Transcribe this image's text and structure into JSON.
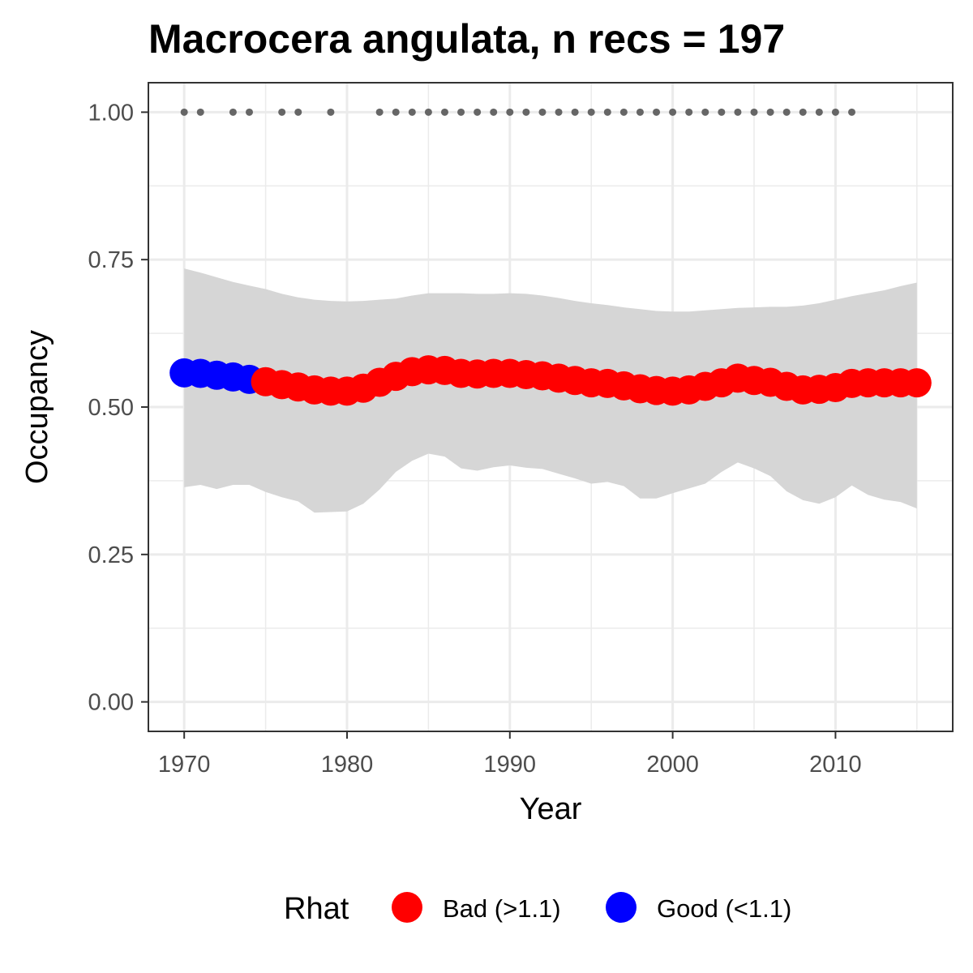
{
  "chart_data": {
    "type": "line",
    "title": "Macrocera angulata, n recs = 197",
    "xlabel": "Year",
    "ylabel": "Occupancy",
    "xlim": [
      1967.8,
      2017.2
    ],
    "ylim": [
      -0.05,
      1.05
    ],
    "x_ticks": [
      1970,
      1980,
      1990,
      2000,
      2010
    ],
    "x_minor_ticks": [
      1975,
      1985,
      1995,
      2005,
      2015
    ],
    "y_ticks": [
      0.0,
      0.25,
      0.5,
      0.75,
      1.0
    ],
    "y_tick_labels": [
      "0.00",
      "0.25",
      "0.50",
      "0.75",
      "1.00"
    ],
    "y_minor_ticks": [
      0.125,
      0.375,
      0.625,
      0.875
    ],
    "grid": true,
    "colors": {
      "bad": "#ff0000",
      "good": "#0000ff",
      "ribbon": "#d6d6d6",
      "records": "#666666"
    },
    "legend": {
      "title": "Rhat",
      "position": "bottom",
      "entries": [
        {
          "label": "Bad (>1.1)",
          "color": "#ff0000"
        },
        {
          "label": "Good (<1.1)",
          "color": "#0000ff"
        }
      ]
    },
    "series": [
      {
        "type": "line-points",
        "x": [
          1970,
          1971,
          1972,
          1973,
          1974,
          1975,
          1976,
          1977,
          1978,
          1979,
          1980,
          1981,
          1982,
          1983,
          1984,
          1985,
          1986,
          1987,
          1988,
          1989,
          1990,
          1991,
          1992,
          1993,
          1994,
          1995,
          1996,
          1997,
          1998,
          1999,
          2000,
          2001,
          2002,
          2003,
          2004,
          2005,
          2006,
          2007,
          2008,
          2009,
          2010,
          2011,
          2012,
          2013,
          2014,
          2015
        ],
        "y": [
          0.558,
          0.557,
          0.554,
          0.551,
          0.547,
          0.543,
          0.538,
          0.534,
          0.529,
          0.527,
          0.527,
          0.532,
          0.542,
          0.552,
          0.56,
          0.563,
          0.562,
          0.557,
          0.556,
          0.557,
          0.557,
          0.555,
          0.553,
          0.549,
          0.545,
          0.541,
          0.54,
          0.536,
          0.531,
          0.528,
          0.527,
          0.529,
          0.535,
          0.541,
          0.549,
          0.545,
          0.542,
          0.535,
          0.529,
          0.53,
          0.533,
          0.54,
          0.541,
          0.541,
          0.541,
          0.541
        ],
        "rhat_status": [
          "good",
          "good",
          "good",
          "good",
          "good",
          "bad",
          "bad",
          "bad",
          "bad",
          "bad",
          "bad",
          "bad",
          "bad",
          "bad",
          "bad",
          "bad",
          "bad",
          "bad",
          "bad",
          "bad",
          "bad",
          "bad",
          "bad",
          "bad",
          "bad",
          "bad",
          "bad",
          "bad",
          "bad",
          "bad",
          "bad",
          "bad",
          "bad",
          "bad",
          "bad",
          "bad",
          "bad",
          "bad",
          "bad",
          "bad",
          "bad",
          "bad",
          "bad",
          "bad",
          "bad",
          "bad"
        ]
      },
      {
        "type": "ribbon",
        "x": [
          1970,
          1971,
          1972,
          1973,
          1974,
          1975,
          1976,
          1977,
          1978,
          1979,
          1980,
          1981,
          1982,
          1983,
          1984,
          1985,
          1986,
          1987,
          1988,
          1989,
          1990,
          1991,
          1992,
          1993,
          1994,
          1995,
          1996,
          1997,
          1998,
          1999,
          2000,
          2001,
          2002,
          2003,
          2004,
          2005,
          2006,
          2007,
          2008,
          2009,
          2010,
          2011,
          2012,
          2013,
          2014,
          2015
        ],
        "upper": [
          0.735,
          0.728,
          0.72,
          0.712,
          0.706,
          0.7,
          0.692,
          0.686,
          0.682,
          0.68,
          0.679,
          0.68,
          0.682,
          0.684,
          0.689,
          0.693,
          0.693,
          0.693,
          0.692,
          0.692,
          0.693,
          0.692,
          0.689,
          0.685,
          0.68,
          0.676,
          0.673,
          0.669,
          0.666,
          0.663,
          0.662,
          0.662,
          0.664,
          0.666,
          0.668,
          0.669,
          0.67,
          0.67,
          0.672,
          0.676,
          0.682,
          0.688,
          0.693,
          0.698,
          0.705,
          0.711
        ],
        "lower": [
          0.364,
          0.368,
          0.361,
          0.368,
          0.368,
          0.356,
          0.347,
          0.34,
          0.321,
          0.322,
          0.323,
          0.336,
          0.36,
          0.39,
          0.409,
          0.421,
          0.416,
          0.396,
          0.392,
          0.398,
          0.401,
          0.397,
          0.395,
          0.387,
          0.379,
          0.37,
          0.373,
          0.366,
          0.345,
          0.345,
          0.354,
          0.362,
          0.37,
          0.39,
          0.406,
          0.396,
          0.383,
          0.357,
          0.342,
          0.336,
          0.347,
          0.367,
          0.351,
          0.343,
          0.339,
          0.328
        ]
      },
      {
        "type": "records",
        "x": [
          1970,
          1971,
          1973,
          1974,
          1976,
          1977,
          1979,
          1982,
          1983,
          1984,
          1985,
          1986,
          1987,
          1988,
          1989,
          1990,
          1991,
          1992,
          1993,
          1994,
          1995,
          1996,
          1997,
          1998,
          1999,
          2000,
          2001,
          2002,
          2003,
          2004,
          2005,
          2006,
          2007,
          2008,
          2009,
          2010,
          2011
        ],
        "y": 1.0
      }
    ]
  }
}
